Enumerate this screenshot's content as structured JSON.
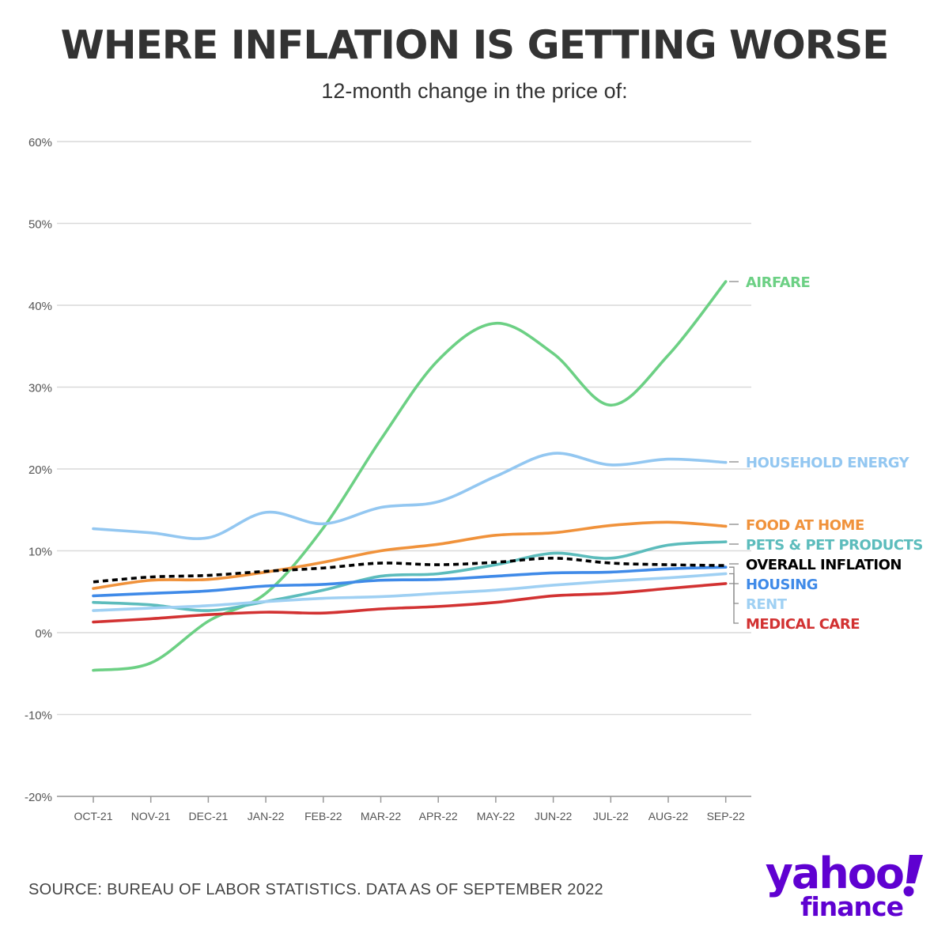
{
  "header": {
    "title": "WHERE INFLATION IS GETTING WORSE",
    "subtitle": "12-month change in the price of:"
  },
  "footer": {
    "source": "SOURCE: BUREAU OF LABOR STATISTICS. DATA AS OF SEPTEMBER 2022"
  },
  "logo": {
    "word": "yahoo",
    "sub": "finance",
    "color": "#5f01d1"
  },
  "chart_data": {
    "type": "line",
    "title": "WHERE INFLATION IS GETTING WORSE",
    "subtitle": "12-month change in the price of:",
    "xlabel": "",
    "ylabel": "",
    "categories": [
      "OCT-21",
      "NOV-21",
      "DEC-21",
      "JAN-22",
      "FEB-22",
      "MAR-22",
      "APR-22",
      "MAY-22",
      "JUN-22",
      "JUL-22",
      "AUG-22",
      "SEP-22"
    ],
    "ylim": [
      -20,
      60
    ],
    "yticks": [
      -20,
      -10,
      0,
      10,
      20,
      30,
      40,
      50,
      60
    ],
    "ytick_labels": [
      "-20%",
      "-10%",
      "0%",
      "10%",
      "20%",
      "30%",
      "40%",
      "50%",
      "60%"
    ],
    "grid": true,
    "legend": "right-end labels",
    "series": [
      {
        "name": "AIRFARE",
        "color": "#6cd084",
        "dashed": false,
        "values": [
          -4.6,
          -3.7,
          1.4,
          4.8,
          12.8,
          23.6,
          33.3,
          37.8,
          34.1,
          27.8,
          33.9,
          42.9
        ]
      },
      {
        "name": "HOUSEHOLD ENERGY",
        "color": "#93c7f1",
        "dashed": false,
        "values": [
          12.7,
          12.2,
          11.6,
          14.7,
          13.3,
          15.3,
          16.0,
          19.1,
          21.9,
          20.5,
          21.2,
          20.8
        ]
      },
      {
        "name": "FOOD AT HOME",
        "color": "#f0923b",
        "dashed": false,
        "values": [
          5.4,
          6.4,
          6.5,
          7.4,
          8.6,
          10.0,
          10.8,
          11.9,
          12.2,
          13.1,
          13.5,
          13.0
        ]
      },
      {
        "name": "PETS & PET PRODUCTS",
        "color": "#5cbcbc",
        "dashed": false,
        "values": [
          3.7,
          3.4,
          2.7,
          3.8,
          5.2,
          6.9,
          7.2,
          8.3,
          9.7,
          9.1,
          10.7,
          11.1
        ]
      },
      {
        "name": "OVERALL INFLATION",
        "color": "#000000",
        "dashed": true,
        "values": [
          6.2,
          6.8,
          7.0,
          7.5,
          7.9,
          8.5,
          8.3,
          8.6,
          9.1,
          8.5,
          8.3,
          8.2
        ]
      },
      {
        "name": "HOUSING",
        "color": "#3f8ae8",
        "dashed": false,
        "values": [
          4.5,
          4.8,
          5.1,
          5.7,
          5.9,
          6.4,
          6.5,
          6.9,
          7.3,
          7.4,
          7.8,
          8.0
        ]
      },
      {
        "name": "RENT",
        "color": "#9fd0f3",
        "dashed": false,
        "values": [
          2.7,
          3.0,
          3.3,
          3.8,
          4.2,
          4.4,
          4.8,
          5.2,
          5.8,
          6.3,
          6.7,
          7.2
        ]
      },
      {
        "name": "MEDICAL CARE",
        "color": "#d23232",
        "dashed": false,
        "values": [
          1.3,
          1.7,
          2.2,
          2.5,
          2.4,
          2.9,
          3.2,
          3.7,
          4.5,
          4.8,
          5.4,
          6.0
        ]
      }
    ]
  }
}
